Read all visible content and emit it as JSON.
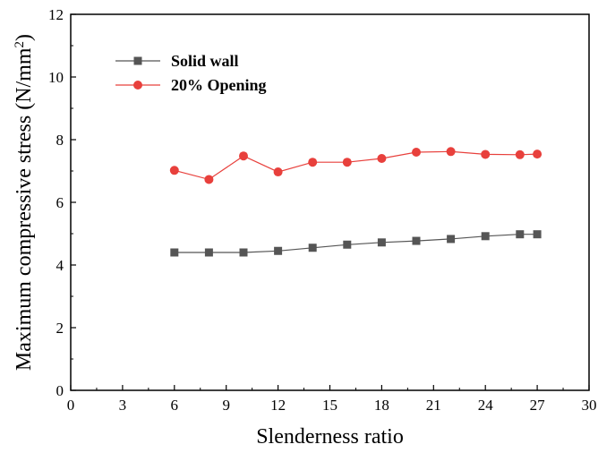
{
  "chart_data": {
    "type": "line",
    "xlabel": "Slenderness ratio",
    "ylabel": "Maximum compressive stress (N/mm",
    "ylabel_sup": "2",
    "ylabel_suffix": ")",
    "xlim": [
      0,
      30
    ],
    "ylim": [
      0,
      12
    ],
    "xticks": [
      0,
      3,
      6,
      9,
      12,
      15,
      18,
      21,
      24,
      27,
      30
    ],
    "yticks": [
      0,
      2,
      4,
      6,
      8,
      10,
      12
    ],
    "grid": false,
    "legend_position": "top-left",
    "series": [
      {
        "name": "Solid wall",
        "marker": "square",
        "color": "#555555",
        "x": [
          6,
          8,
          10,
          12,
          14,
          16,
          18,
          20,
          22,
          24,
          26,
          27
        ],
        "y": [
          4.4,
          4.4,
          4.4,
          4.45,
          4.55,
          4.65,
          4.72,
          4.77,
          4.83,
          4.92,
          4.98,
          4.98
        ]
      },
      {
        "name": "20% Opening",
        "marker": "circle",
        "color": "#e8403c",
        "x": [
          6,
          8,
          10,
          12,
          14,
          16,
          18,
          20,
          22,
          24,
          26,
          27
        ],
        "y": [
          7.02,
          6.73,
          7.48,
          6.97,
          7.28,
          7.28,
          7.4,
          7.6,
          7.62,
          7.53,
          7.52,
          7.54
        ]
      }
    ]
  }
}
